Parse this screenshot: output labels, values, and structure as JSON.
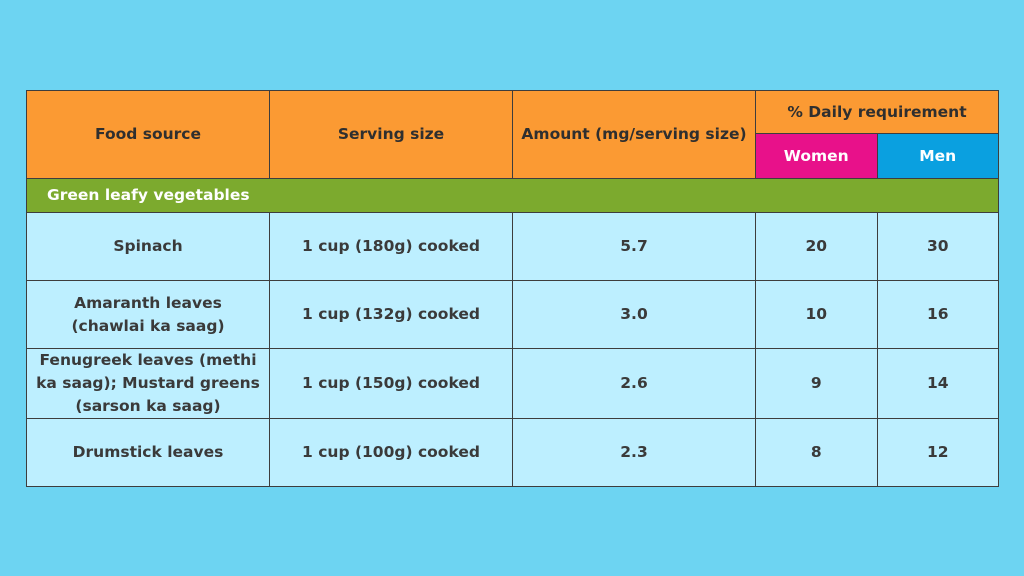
{
  "table": {
    "headers": {
      "food_source": "Food source",
      "serving_size": "Serving size",
      "amount": "Amount (mg/serving size)",
      "daily_requirement": "% Daily requirement",
      "women": "Women",
      "men": "Men"
    },
    "section_label": "Green leafy vegetables",
    "rows": [
      {
        "food": "Spinach",
        "serving": "1 cup (180g) cooked",
        "amount": "5.7",
        "women": "20",
        "men": "30"
      },
      {
        "food": "Amaranth leaves (chawlai ka saag)",
        "serving": "1 cup (132g) cooked",
        "amount": "3.0",
        "women": "10",
        "men": "16"
      },
      {
        "food": "Fenugreek leaves (methi ka saag); Mustard greens (sarson ka saag)",
        "serving": "1 cup (150g) cooked",
        "amount": "2.6",
        "women": "9",
        "men": "14"
      },
      {
        "food": "Drumstick leaves",
        "serving": "1 cup (100g) cooked",
        "amount": "2.3",
        "women": "8",
        "men": "12"
      }
    ]
  },
  "colors": {
    "background": "#6dd4f2",
    "header": "#fb9a33",
    "women": "#e8118a",
    "men": "#0aa0e0",
    "section": "#7caa2e",
    "row": "#bdefff"
  }
}
